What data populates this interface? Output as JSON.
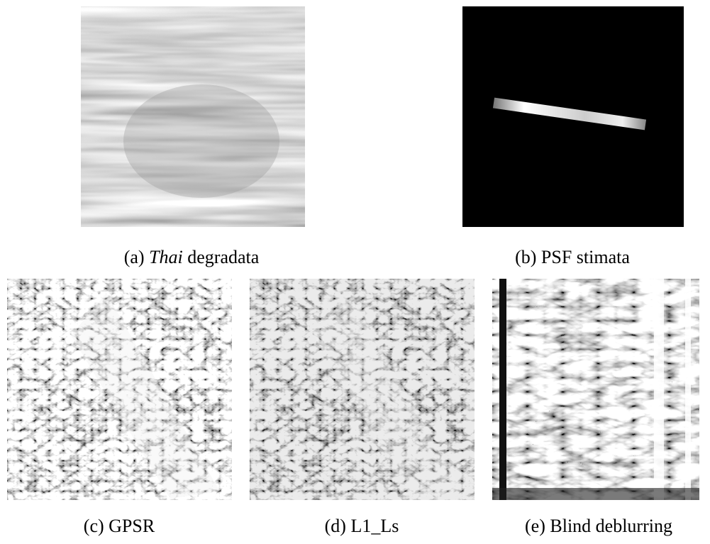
{
  "figure": {
    "panels": [
      {
        "label": "(a)",
        "caption_italic": "Thai",
        "caption": "degradata"
      },
      {
        "label": "(b)",
        "caption": "PSF stimata"
      },
      {
        "label": "(c)",
        "caption": "GPSR"
      },
      {
        "label": "(d)",
        "caption": "L1_Ls"
      },
      {
        "label": "(e)",
        "caption": "Blind deblurring"
      }
    ]
  }
}
